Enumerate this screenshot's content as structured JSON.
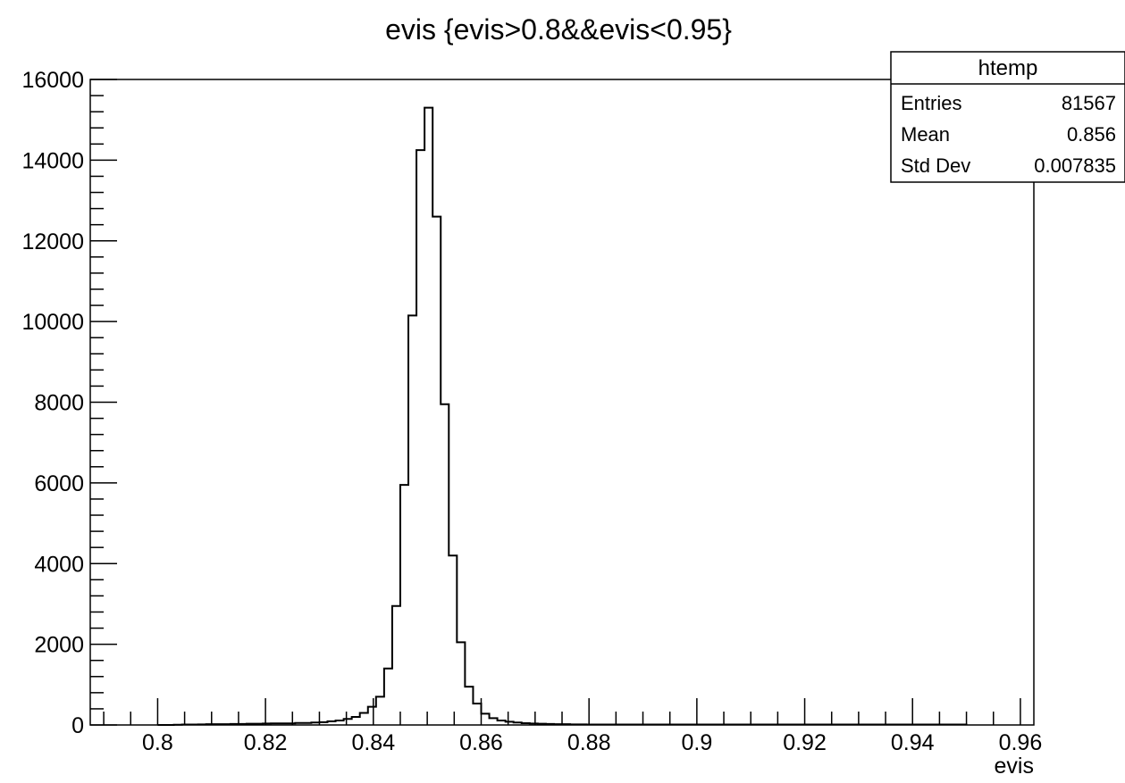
{
  "chart_data": {
    "type": "bar",
    "style": "step-histogram",
    "title": "evis {evis>0.8&&evis<0.95}",
    "xlabel": "evis",
    "ylabel": "",
    "xlim": [
      0.7875,
      0.9625
    ],
    "ylim": [
      0,
      16000
    ],
    "grid": false,
    "bin_width": 0.0015,
    "bin_start": 0.8,
    "x_ticks": [
      0.8,
      0.82,
      0.84,
      0.86,
      0.88,
      0.9,
      0.92,
      0.94,
      0.96
    ],
    "x_tick_labels": [
      "0.8",
      "0.82",
      "0.84",
      "0.86",
      "0.88",
      "0.9",
      "0.92",
      "0.94",
      "0.96"
    ],
    "y_ticks": [
      0,
      2000,
      4000,
      6000,
      8000,
      10000,
      12000,
      14000,
      16000
    ],
    "y_tick_labels": [
      "0",
      "2000",
      "4000",
      "6000",
      "8000",
      "10000",
      "12000",
      "14000",
      "16000"
    ],
    "values": [
      0,
      0,
      5,
      10,
      10,
      15,
      20,
      20,
      20,
      25,
      25,
      30,
      30,
      35,
      40,
      40,
      40,
      50,
      50,
      60,
      70,
      90,
      110,
      150,
      200,
      300,
      450,
      700,
      1400,
      2950,
      5950,
      10150,
      14250,
      15300,
      12600,
      7950,
      4200,
      2050,
      950,
      530,
      280,
      170,
      110,
      80,
      60,
      45,
      35,
      30,
      25,
      20,
      20,
      15,
      15,
      10,
      10,
      10,
      10,
      10,
      10,
      10,
      10,
      10,
      10,
      10,
      10,
      10,
      10,
      10,
      10,
      10,
      10,
      10,
      10,
      10,
      10,
      10,
      10,
      10,
      10,
      10,
      10,
      10,
      10,
      10,
      10,
      10,
      10,
      10,
      10,
      10,
      10,
      10,
      10,
      10,
      10,
      10,
      10,
      10,
      10,
      10
    ],
    "stats_box": {
      "name": "htemp",
      "rows": [
        {
          "label": "Entries",
          "value": "81567"
        },
        {
          "label": "Mean",
          "value": "0.856"
        },
        {
          "label": "Std Dev",
          "value": "0.007835"
        }
      ]
    }
  }
}
